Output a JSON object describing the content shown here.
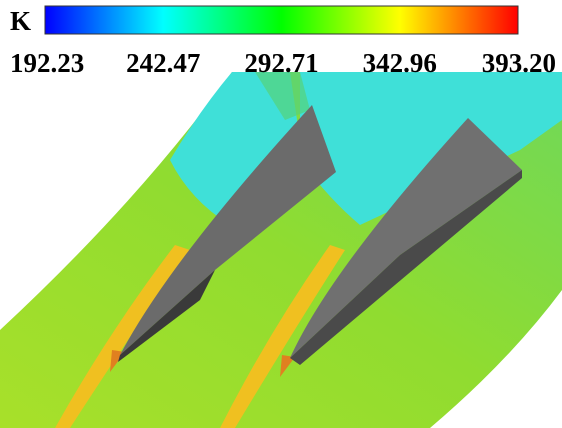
{
  "colorbar": {
    "unit": "K",
    "ticks": [
      "192.23",
      "242.47",
      "292.71",
      "342.96",
      "393.20"
    ]
  }
}
